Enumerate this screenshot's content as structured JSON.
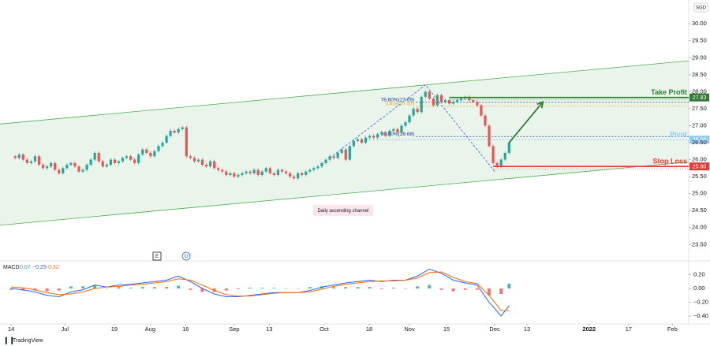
{
  "header": {
    "currency": "SGD",
    "brand": "TradingView",
    "markers": [
      "E",
      "D"
    ]
  },
  "chart_data": [
    {
      "type": "candlestick",
      "up_color": "#26a69a",
      "down_color": "#ef5350",
      "x": [
        0,
        1,
        2,
        3,
        4,
        5,
        6,
        7,
        8,
        9,
        10,
        11,
        12,
        13,
        14,
        15,
        16,
        17,
        18,
        19,
        20,
        21,
        22,
        23,
        24,
        25,
        26,
        27,
        28,
        29,
        30,
        31,
        32,
        33,
        34,
        35,
        36,
        37,
        38,
        39,
        40,
        41,
        42,
        43,
        44,
        45,
        46,
        47,
        48,
        49,
        50,
        51,
        52,
        53,
        54,
        55,
        56,
        57,
        58,
        59,
        60,
        61,
        62,
        63,
        64,
        65,
        66,
        67,
        68,
        69,
        70,
        71,
        72,
        73,
        74,
        75,
        76,
        77,
        78,
        79,
        80,
        81,
        82,
        83,
        84,
        85,
        86,
        87,
        88,
        89,
        90,
        91,
        92,
        93,
        94,
        95,
        96,
        97,
        98,
        99,
        100,
        101,
        102,
        103,
        104,
        105,
        106,
        107,
        108,
        109,
        110,
        111,
        112,
        113,
        114,
        115,
        116,
        117,
        118,
        119,
        120,
        121,
        122,
        123,
        124,
        125
      ],
      "close": [
        26.1,
        26.05,
        26.15,
        26.0,
        25.9,
        25.95,
        26.1,
        25.85,
        25.75,
        25.8,
        25.9,
        25.7,
        25.6,
        25.75,
        25.85,
        25.9,
        25.8,
        25.65,
        25.7,
        25.85,
        26.0,
        26.2,
        25.95,
        25.8,
        25.85,
        26.0,
        25.9,
        25.95,
        26.05,
        26.1,
        26.0,
        25.9,
        26.15,
        26.3,
        26.2,
        26.1,
        26.25,
        26.4,
        26.5,
        26.7,
        26.85,
        26.8,
        26.9,
        26.95,
        26.1,
        26.05,
        25.95,
        26.0,
        25.85,
        25.8,
        25.95,
        25.75,
        25.7,
        25.65,
        25.55,
        25.6,
        25.5,
        25.55,
        25.6,
        25.65,
        25.6,
        25.7,
        25.55,
        25.65,
        25.75,
        25.6,
        25.55,
        25.7,
        25.65,
        25.6,
        25.5,
        25.45,
        25.6,
        25.55,
        25.65,
        25.7,
        25.75,
        25.8,
        25.9,
        26.0,
        26.1,
        26.05,
        26.2,
        26.3,
        26.0,
        26.4,
        26.55,
        26.6,
        26.5,
        26.65,
        26.7,
        26.65,
        26.75,
        26.8,
        26.7,
        26.85,
        26.9,
        26.8,
        27.0,
        27.1,
        27.3,
        27.5,
        27.4,
        27.85,
        28.0,
        27.8,
        27.6,
        27.9,
        27.7,
        27.75,
        27.65,
        27.7,
        27.75,
        27.8,
        27.85,
        27.75,
        27.7,
        27.6,
        27.3,
        27.0,
        26.4,
        25.9,
        25.8,
        26.0,
        26.2,
        26.5
      ],
      "xlim": [
        -2.8,
        170.1
      ],
      "xticks": [
        {
          "value": 0,
          "label": "14"
        },
        {
          "value": 13.5,
          "label": "Jul"
        },
        {
          "value": 25.9,
          "label": "19"
        },
        {
          "value": 34.9,
          "label": "Aug"
        },
        {
          "value": 43.8,
          "label": "16"
        },
        {
          "value": 56.0,
          "label": "Sep"
        },
        {
          "value": 64.8,
          "label": "13"
        },
        {
          "value": 78.6,
          "label": "Oct"
        },
        {
          "value": 89.9,
          "label": "18"
        },
        {
          "value": 100,
          "label": "Nov"
        },
        {
          "value": 109.3,
          "label": "15"
        },
        {
          "value": 121.4,
          "label": "Dec"
        },
        {
          "value": 129.5,
          "label": "13"
        },
        {
          "value": 145.1,
          "label": "2022"
        },
        {
          "value": 155,
          "label": "17"
        },
        {
          "value": 166,
          "label": "Feb"
        }
      ],
      "ylim": [
        23.02,
        30.7
      ],
      "yticks": [
        {
          "value": 23.5,
          "label": "23.50"
        },
        {
          "value": 24,
          "label": "24.00"
        },
        {
          "value": 24.5,
          "label": "24.50"
        },
        {
          "value": 25,
          "label": "25.00"
        },
        {
          "value": 25.5,
          "label": "25.50"
        },
        {
          "value": 26,
          "label": "26.00"
        },
        {
          "value": 26.5,
          "label": "26.50"
        },
        {
          "value": 27,
          "label": "27.00"
        },
        {
          "value": 27.5,
          "label": "27.50"
        },
        {
          "value": 28,
          "label": "28.00"
        },
        {
          "value": 28.5,
          "label": "28.50"
        },
        {
          "value": 29,
          "label": "29.00"
        },
        {
          "value": 29.5,
          "label": "29.50"
        },
        {
          "value": 30,
          "label": "30.00"
        }
      ],
      "channel": {
        "label": "Daily ascending channel",
        "color": "#4caf50",
        "upper": [
          [
            -2.8,
            27.05
          ],
          [
            170.1,
            28.91
          ]
        ],
        "lower": [
          [
            -2.8,
            24.07
          ],
          [
            170.1,
            25.93
          ]
        ]
      },
      "levels": [
        {
          "name": "Take Profit",
          "value": 27.83,
          "color": "#2e7d32",
          "start": 110
        },
        {
          "name": "Pivot",
          "value": 26.59,
          "color": "#90caf9",
          "start": 89.3
        },
        {
          "name": "Stop Loss",
          "value": 25.8,
          "label": "25.80",
          "color": "#e53935",
          "start": 121
        }
      ],
      "fib": [
        {
          "label": "78.60%(27.69)",
          "value": 27.69,
          "color": "#1a3a8f"
        },
        {
          "label": "0.618(27.57)",
          "value": 27.57,
          "color": "#f59e0b"
        },
        {
          "label": "50.00%(26.68)",
          "value": 26.68,
          "color": "#1a3a8f"
        }
      ],
      "zigzag": [
        [
          80,
          26.05
        ],
        [
          104,
          28.2
        ],
        [
          121.4,
          25.65
        ]
      ],
      "arrow": [
        [
          125,
          26.5
        ],
        [
          133.5,
          27.7
        ]
      ]
    },
    {
      "type": "macd",
      "title": "MACD",
      "legend_values": [
        "0.07",
        "−0.25",
        "−0.32"
      ],
      "x": [
        0,
        3,
        6,
        9,
        12,
        15,
        18,
        21,
        24,
        27,
        30,
        33,
        36,
        39,
        42,
        45,
        48,
        51,
        54,
        57,
        60,
        63,
        66,
        69,
        72,
        75,
        78,
        81,
        84,
        87,
        90,
        93,
        96,
        99,
        102,
        105,
        108,
        111,
        114,
        117,
        120,
        123,
        125
      ],
      "series": [
        {
          "name": "Histogram",
          "kind": "bars",
          "color": "#26a69a",
          "down_color": "#ef5350",
          "values": [
            -0.02,
            -0.03,
            -0.03,
            -0.04,
            -0.03,
            0.03,
            0.03,
            0.05,
            0.0,
            0.02,
            0.01,
            0.02,
            0.02,
            0.02,
            0.04,
            -0.02,
            -0.05,
            -0.05,
            -0.03,
            -0.01,
            0.01,
            0.01,
            0.01,
            0.0,
            0.0,
            0.02,
            0.03,
            0.02,
            0.02,
            0.02,
            0.02,
            -0.01,
            0.01,
            0.0,
            0.03,
            0.05,
            -0.02,
            -0.04,
            -0.02,
            -0.02,
            -0.1,
            -0.08,
            0.07
          ]
        },
        {
          "name": "MACD",
          "kind": "line",
          "color": "#2962ff",
          "values": [
            0.0,
            -0.02,
            -0.05,
            -0.1,
            -0.12,
            -0.05,
            -0.02,
            0.05,
            0.02,
            0.05,
            0.06,
            0.08,
            0.1,
            0.12,
            0.18,
            0.1,
            0.0,
            -0.08,
            -0.12,
            -0.12,
            -0.1,
            -0.08,
            -0.06,
            -0.06,
            -0.06,
            -0.03,
            0.02,
            0.05,
            0.08,
            0.1,
            0.12,
            0.1,
            0.12,
            0.12,
            0.18,
            0.28,
            0.22,
            0.12,
            0.08,
            0.05,
            -0.2,
            -0.4,
            -0.25
          ]
        },
        {
          "name": "Signal",
          "kind": "line",
          "color": "#ff6d00",
          "values": [
            0.02,
            0.01,
            -0.02,
            -0.06,
            -0.09,
            -0.08,
            -0.05,
            0.0,
            0.02,
            0.03,
            0.05,
            0.06,
            0.08,
            0.1,
            0.14,
            0.12,
            0.05,
            -0.03,
            -0.09,
            -0.11,
            -0.11,
            -0.09,
            -0.07,
            -0.06,
            -0.06,
            -0.05,
            -0.01,
            0.03,
            0.06,
            0.08,
            0.1,
            0.11,
            0.11,
            0.12,
            0.15,
            0.23,
            0.24,
            0.16,
            0.1,
            0.07,
            -0.1,
            -0.32,
            -0.32
          ]
        }
      ],
      "ylim": [
        -0.503,
        0.377
      ],
      "yticks": [
        {
          "value": 0.2,
          "label": "0.20"
        },
        {
          "value": 0,
          "label": "0.00"
        },
        {
          "value": -0.2,
          "label": "−0.20"
        },
        {
          "value": -0.4,
          "label": "−0.40"
        }
      ]
    }
  ]
}
